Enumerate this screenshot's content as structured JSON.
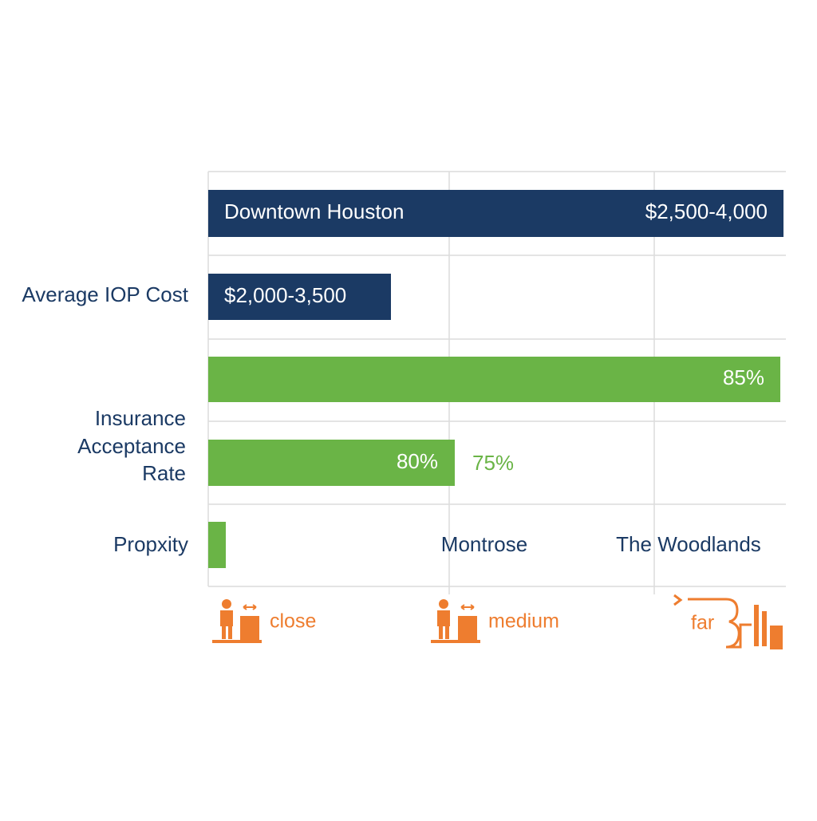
{
  "rows": [
    {
      "label": "Average IOP Cost",
      "bars": [
        {
          "label": "Downtown Houston",
          "value_label": "$2,500-4,000"
        },
        {
          "value_label": "$2,000-3,500"
        }
      ]
    },
    {
      "label_lines": [
        "Insurance",
        "Acceptance",
        "Rate"
      ],
      "bars": [
        {
          "value_label": "85%"
        },
        {
          "value_label": "80%",
          "extra_label": "75%"
        }
      ]
    },
    {
      "label": "Propxity",
      "locations": [
        "Montrose",
        "The Woodlands"
      ]
    }
  ],
  "distance_legend": [
    "close",
    "medium",
    "far"
  ]
}
